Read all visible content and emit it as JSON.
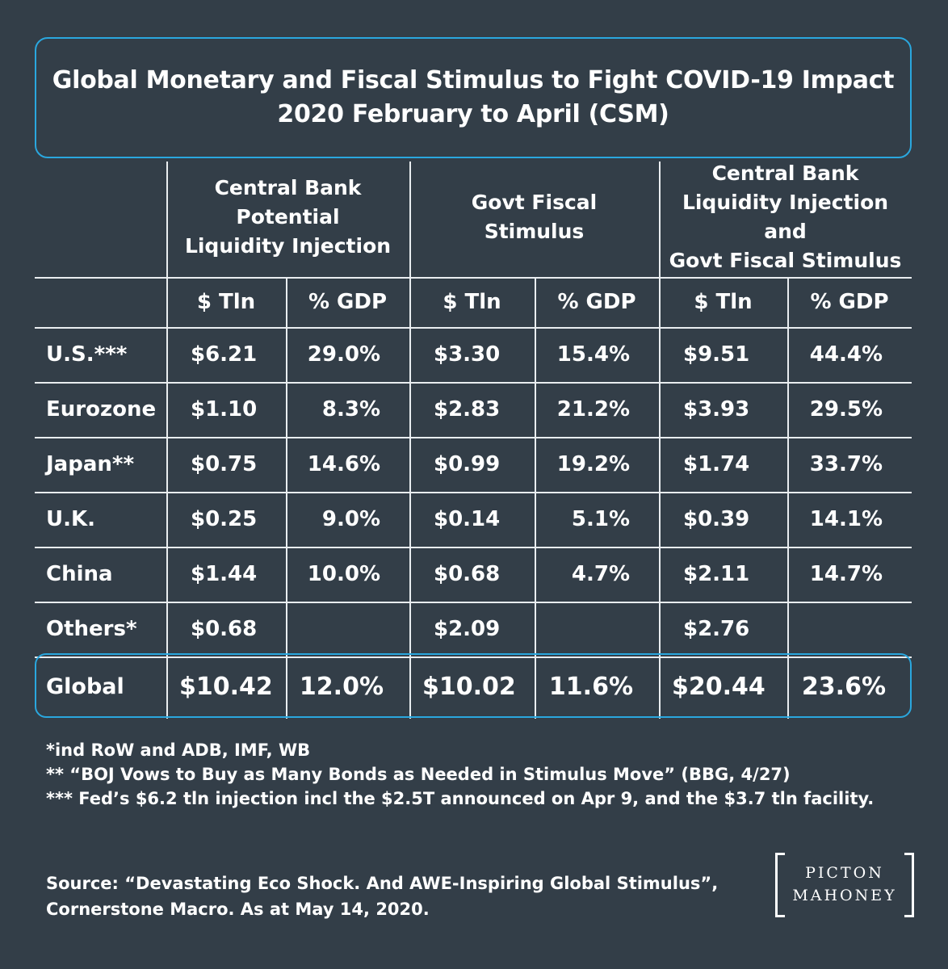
{
  "header": {
    "title_line1": "Global Monetary and Fiscal Stimulus to Fight COVID-19 Impact",
    "title_line2": "2020 February to April (CSM)"
  },
  "column_groups": [
    {
      "label_lines": [
        "Central Bank",
        "Potential",
        "Liquidity Injection"
      ]
    },
    {
      "label_lines": [
        "Govt Fiscal",
        "Stimulus"
      ]
    },
    {
      "label_lines": [
        "Central Bank",
        "Liquidity Injection and",
        "Govt Fiscal Stimulus"
      ]
    }
  ],
  "sub_headers": [
    "$ Tln",
    "% GDP",
    "$ Tln",
    "% GDP",
    "$ Tln",
    "% GDP"
  ],
  "chart_data": {
    "type": "table",
    "title": "Global Monetary and Fiscal Stimulus to Fight COVID-19 Impact 2020 February to April (CSM)",
    "columns": [
      "Central Bank Potential Liquidity Injection $ Tln",
      "Central Bank Potential Liquidity Injection % GDP",
      "Govt Fiscal Stimulus $ Tln",
      "Govt Fiscal Stimulus % GDP",
      "Central Bank Liquidity Injection and Govt Fiscal Stimulus $ Tln",
      "Central Bank Liquidity Injection and Govt Fiscal Stimulus % GDP"
    ],
    "rows": [
      {
        "label": "U.S.***",
        "values": [
          "$6.21",
          "29.0%",
          "$3.30",
          "15.4%",
          "$9.51",
          "44.4%"
        ]
      },
      {
        "label": "Eurozone",
        "values": [
          "$1.10",
          "8.3%",
          "$2.83",
          "21.2%",
          "$3.93",
          "29.5%"
        ]
      },
      {
        "label": "Japan**",
        "values": [
          "$0.75",
          "14.6%",
          "$0.99",
          "19.2%",
          "$1.74",
          "33.7%"
        ]
      },
      {
        "label": "U.K.",
        "values": [
          "$0.25",
          "9.0%",
          "$0.14",
          "5.1%",
          "$0.39",
          "14.1%"
        ]
      },
      {
        "label": "China",
        "values": [
          "$1.44",
          "10.0%",
          "$0.68",
          "4.7%",
          "$2.11",
          "14.7%"
        ]
      },
      {
        "label": "Others*",
        "values": [
          "$0.68",
          "",
          "$2.09",
          "",
          "$2.76",
          ""
        ]
      }
    ],
    "total_row": {
      "label": "Global",
      "values": [
        "$10.42",
        "12.0%",
        "$10.02",
        "11.6%",
        "$20.44",
        "23.6%"
      ]
    }
  },
  "footnotes": [
    "*ind RoW and ADB, IMF, WB",
    "** “BOJ Vows to Buy as Many Bonds as Needed in Stimulus Move” (BBG, 4/27)",
    "*** Fed’s $6.2 tln injection incl the $2.5T announced on Apr 9, and the $3.7 tln facility."
  ],
  "source": {
    "line1": "Source: “Devastating Eco Shock. And AWE-Inspiring Global Stimulus”,",
    "line2": "Cornerstone Macro. As at May 14, 2020."
  },
  "logo": {
    "line1": "PICTON",
    "line2": "MAHONEY"
  },
  "colors": {
    "background": "#333e48",
    "accent": "#2aa7de",
    "text": "#ffffff"
  }
}
